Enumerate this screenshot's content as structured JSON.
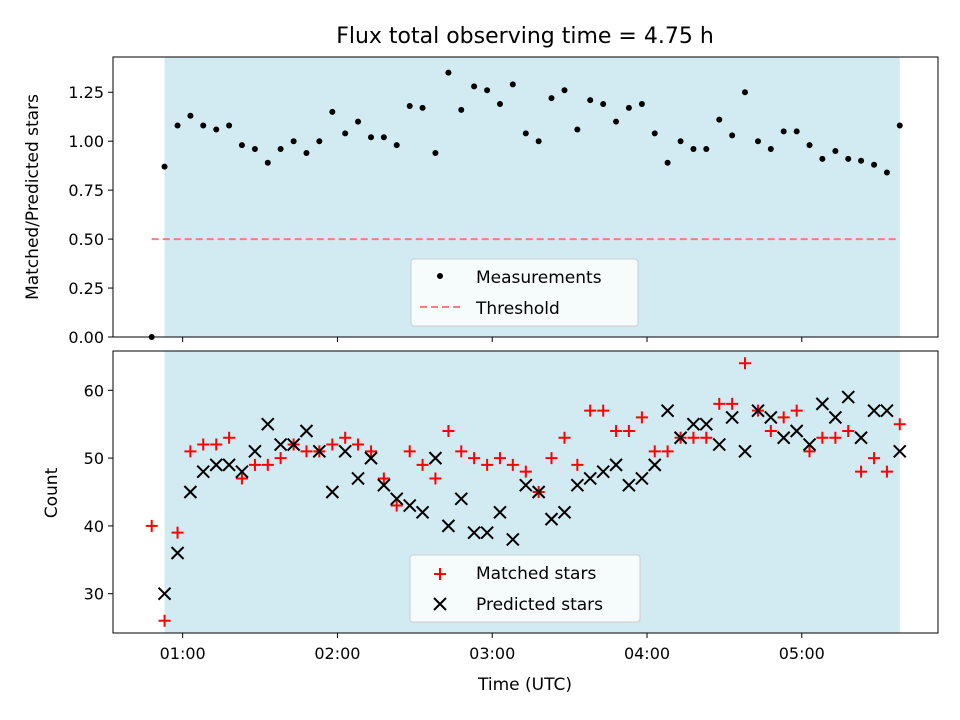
{
  "chart_data": [
    {
      "type": "scatter",
      "title": "Flux total observing time = 4.75 h",
      "xlabel": "",
      "ylabel": "Matched/Predicted stars",
      "xlim": [
        0.55,
        5.88
      ],
      "ylim": [
        0.0,
        1.43
      ],
      "yticks": [
        {
          "v": 0.0,
          "label": "0.00"
        },
        {
          "v": 0.25,
          "label": "0.25"
        },
        {
          "v": 0.5,
          "label": "0.50"
        },
        {
          "v": 0.75,
          "label": "0.75"
        },
        {
          "v": 1.0,
          "label": "1.00"
        },
        {
          "v": 1.25,
          "label": "1.25"
        }
      ],
      "x_ticks_hours": [
        1,
        2,
        3,
        4,
        5
      ],
      "shaded_span": [
        0.883,
        5.633
      ],
      "shade_color": "#add8e6",
      "series": [
        {
          "name": "Measurements",
          "marker": "dot",
          "color": "#000000",
          "x": [
            0.8,
            0.883,
            0.967,
            1.05,
            1.133,
            1.217,
            1.3,
            1.383,
            1.467,
            1.55,
            1.633,
            1.717,
            1.8,
            1.883,
            1.967,
            2.05,
            2.133,
            2.217,
            2.3,
            2.383,
            2.467,
            2.55,
            2.633,
            2.717,
            2.8,
            2.883,
            2.967,
            3.05,
            3.133,
            3.217,
            3.3,
            3.383,
            3.467,
            3.55,
            3.633,
            3.717,
            3.8,
            3.883,
            3.967,
            4.05,
            4.133,
            4.217,
            4.3,
            4.383,
            4.467,
            4.55,
            4.633,
            4.717,
            4.8,
            4.883,
            4.967,
            5.05,
            5.133,
            5.217,
            5.3,
            5.383,
            5.467,
            5.55,
            5.633
          ],
          "y": [
            0.0,
            0.87,
            1.08,
            1.13,
            1.08,
            1.06,
            1.08,
            0.98,
            0.96,
            0.89,
            0.96,
            1.0,
            0.94,
            1.0,
            1.15,
            1.04,
            1.1,
            1.02,
            1.02,
            0.98,
            1.18,
            1.17,
            0.94,
            1.35,
            1.16,
            1.28,
            1.26,
            1.19,
            1.29,
            1.04,
            1.0,
            1.22,
            1.26,
            1.06,
            1.21,
            1.19,
            1.1,
            1.17,
            1.19,
            1.04,
            0.89,
            1.0,
            0.96,
            0.96,
            1.11,
            1.03,
            1.25,
            1.0,
            0.96,
            1.05,
            1.05,
            0.98,
            0.91,
            0.95,
            0.91,
            0.9,
            0.88,
            0.84,
            1.08
          ]
        },
        {
          "name": "Threshold",
          "marker": "dashed-line",
          "color": "#f08080",
          "x": [
            0.8,
            5.633
          ],
          "y": [
            0.5,
            0.5
          ]
        }
      ],
      "legend_placement": "lower-center"
    },
    {
      "type": "scatter",
      "title": "",
      "xlabel": "Time (UTC)",
      "ylabel": "Count",
      "xlim": [
        0.55,
        5.88
      ],
      "ylim": [
        24.2,
        65.8
      ],
      "yticks": [
        {
          "v": 30,
          "label": "30"
        },
        {
          "v": 40,
          "label": "40"
        },
        {
          "v": 50,
          "label": "50"
        },
        {
          "v": 60,
          "label": "60"
        }
      ],
      "x_tick_labels": [
        "01:00",
        "02:00",
        "03:00",
        "04:00",
        "05:00"
      ],
      "x_ticks_hours": [
        1,
        2,
        3,
        4,
        5
      ],
      "shaded_span": [
        0.883,
        5.633
      ],
      "shade_color": "#add8e6",
      "series": [
        {
          "name": "Matched stars",
          "marker": "plus",
          "color": "#ff0000",
          "x": [
            0.8,
            0.883,
            0.967,
            1.05,
            1.133,
            1.217,
            1.3,
            1.383,
            1.467,
            1.55,
            1.633,
            1.717,
            1.8,
            1.883,
            1.967,
            2.05,
            2.133,
            2.217,
            2.3,
            2.383,
            2.467,
            2.55,
            2.633,
            2.717,
            2.8,
            2.883,
            2.967,
            3.05,
            3.133,
            3.217,
            3.3,
            3.383,
            3.467,
            3.55,
            3.633,
            3.717,
            3.8,
            3.883,
            3.967,
            4.05,
            4.133,
            4.217,
            4.3,
            4.383,
            4.467,
            4.55,
            4.633,
            4.717,
            4.8,
            4.883,
            4.967,
            5.05,
            5.133,
            5.217,
            5.3,
            5.383,
            5.467,
            5.55,
            5.633
          ],
          "y": [
            40,
            26,
            39,
            51,
            52,
            52,
            53,
            47,
            49,
            49,
            50,
            52,
            51,
            51,
            52,
            53,
            52,
            51,
            47,
            43,
            51,
            49,
            47,
            54,
            51,
            50,
            49,
            50,
            49,
            48,
            45,
            50,
            53,
            49,
            57,
            57,
            54,
            54,
            56,
            51,
            51,
            53,
            53,
            53,
            58,
            58,
            64,
            57,
            54,
            56,
            57,
            51,
            53,
            53,
            54,
            48,
            50,
            48,
            55
          ]
        },
        {
          "name": "Predicted stars",
          "marker": "x",
          "color": "#000000",
          "x": [
            0.883,
            0.967,
            1.05,
            1.133,
            1.217,
            1.3,
            1.383,
            1.467,
            1.55,
            1.633,
            1.717,
            1.8,
            1.883,
            1.967,
            2.05,
            2.133,
            2.217,
            2.3,
            2.383,
            2.467,
            2.55,
            2.633,
            2.717,
            2.8,
            2.883,
            2.967,
            3.05,
            3.133,
            3.217,
            3.3,
            3.383,
            3.467,
            3.55,
            3.633,
            3.717,
            3.8,
            3.883,
            3.967,
            4.05,
            4.133,
            4.217,
            4.3,
            4.383,
            4.467,
            4.55,
            4.633,
            4.717,
            4.8,
            4.883,
            4.967,
            5.05,
            5.133,
            5.217,
            5.3,
            5.383,
            5.467,
            5.55,
            5.633
          ],
          "y": [
            30,
            36,
            45,
            48,
            49,
            49,
            48,
            51,
            55,
            52,
            52,
            54,
            51,
            45,
            51,
            47,
            50,
            46,
            44,
            43,
            42,
            50,
            40,
            44,
            39,
            39,
            42,
            38,
            46,
            45,
            41,
            42,
            46,
            47,
            48,
            49,
            46,
            47,
            49,
            57,
            53,
            55,
            55,
            52,
            56,
            51,
            57,
            56,
            53,
            54,
            52,
            58,
            56,
            59,
            53,
            57,
            57,
            51
          ]
        }
      ],
      "legend_placement": "lower-center"
    }
  ]
}
